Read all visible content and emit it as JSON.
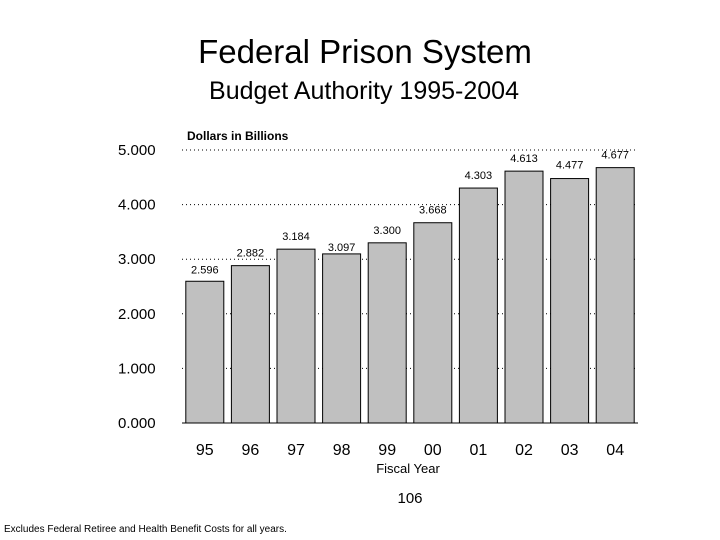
{
  "page": {
    "title": "Federal Prison System",
    "subtitle": "Budget Authority 1995-2004",
    "page_number": "106",
    "footnote": "Excludes Federal Retiree and Health Benefit Costs for all years."
  },
  "chart_data": {
    "type": "bar",
    "title": "Federal Prison System",
    "subtitle": "Budget Authority 1995-2004",
    "xlabel": "Fiscal Year",
    "ylabel": "Dollars in Billions",
    "categories": [
      "95",
      "96",
      "97",
      "98",
      "99",
      "00",
      "01",
      "02",
      "03",
      "04"
    ],
    "values": [
      2.596,
      2.882,
      3.184,
      3.097,
      3.3,
      3.668,
      4.303,
      4.613,
      4.477,
      4.677
    ],
    "value_labels": [
      "2.596",
      "2.882",
      "3.184",
      "3.097",
      "3.300",
      "3.668",
      "4.303",
      "4.613",
      "4.477",
      "4.677"
    ],
    "yticks": [
      "0.000",
      "1.000",
      "2.000",
      "3.000",
      "4.000",
      "5.000"
    ],
    "ylim": [
      0,
      5
    ],
    "grid": true,
    "bar_color": "#c0c0c0"
  }
}
